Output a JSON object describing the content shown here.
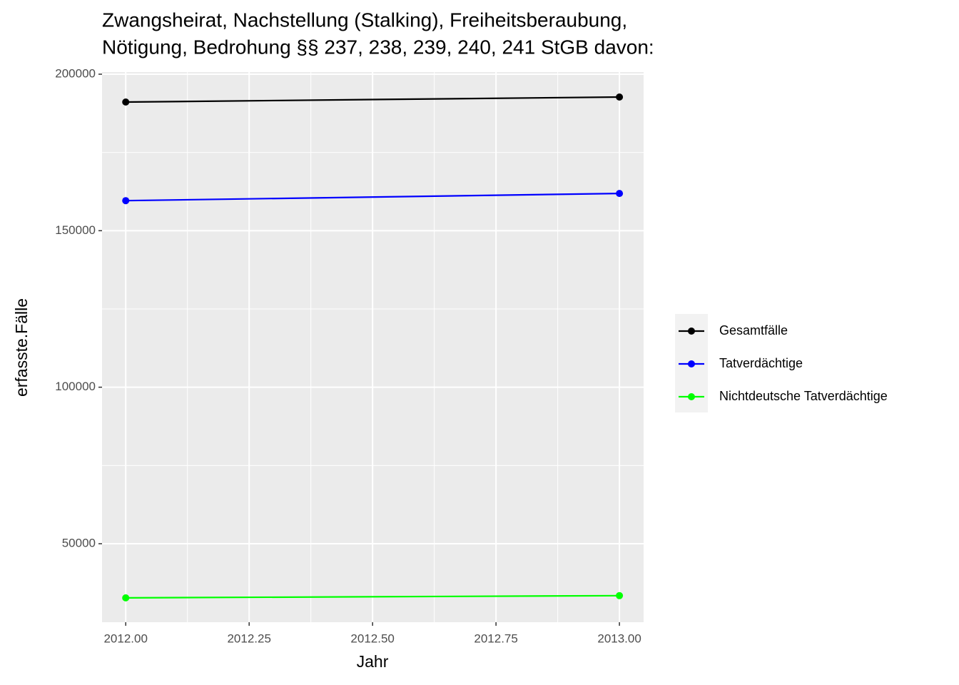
{
  "chart_data": {
    "type": "line",
    "title": [
      "Zwangsheirat, Nachstellung (Stalking), Freiheitsberaubung,",
      "Nötigung, Bedrohung §§ 237, 238, 239, 240, 241 StGB davon:"
    ],
    "x_label": "Jahr",
    "y_label": "erfasste.Fälle",
    "x": [
      2012,
      2013
    ],
    "series": [
      {
        "name": "Gesamtfälle",
        "color": "#000000",
        "values": [
          191100,
          192700
        ]
      },
      {
        "name": "Tatverdächtige",
        "color": "#0000ff",
        "values": [
          159600,
          161900
        ]
      },
      {
        "name": "Nichtdeutsche Tatverdächtige",
        "color": "#00ff00",
        "values": [
          32700,
          33400
        ]
      }
    ],
    "xlim": [
      2011.952,
      2013.049
    ],
    "xticks": [
      {
        "value": 2012,
        "label": "2012.00"
      },
      {
        "value": 2012.25,
        "label": "2012.25"
      },
      {
        "value": 2012.5,
        "label": "2012.50"
      },
      {
        "value": 2012.75,
        "label": "2012.75"
      },
      {
        "value": 2013,
        "label": "2013.00"
      }
    ],
    "ylim": [
      24920,
      200680
    ],
    "yticks": [
      50000,
      100000,
      150000,
      200000
    ],
    "grid": true,
    "minor_grid": true,
    "legend": "right"
  }
}
